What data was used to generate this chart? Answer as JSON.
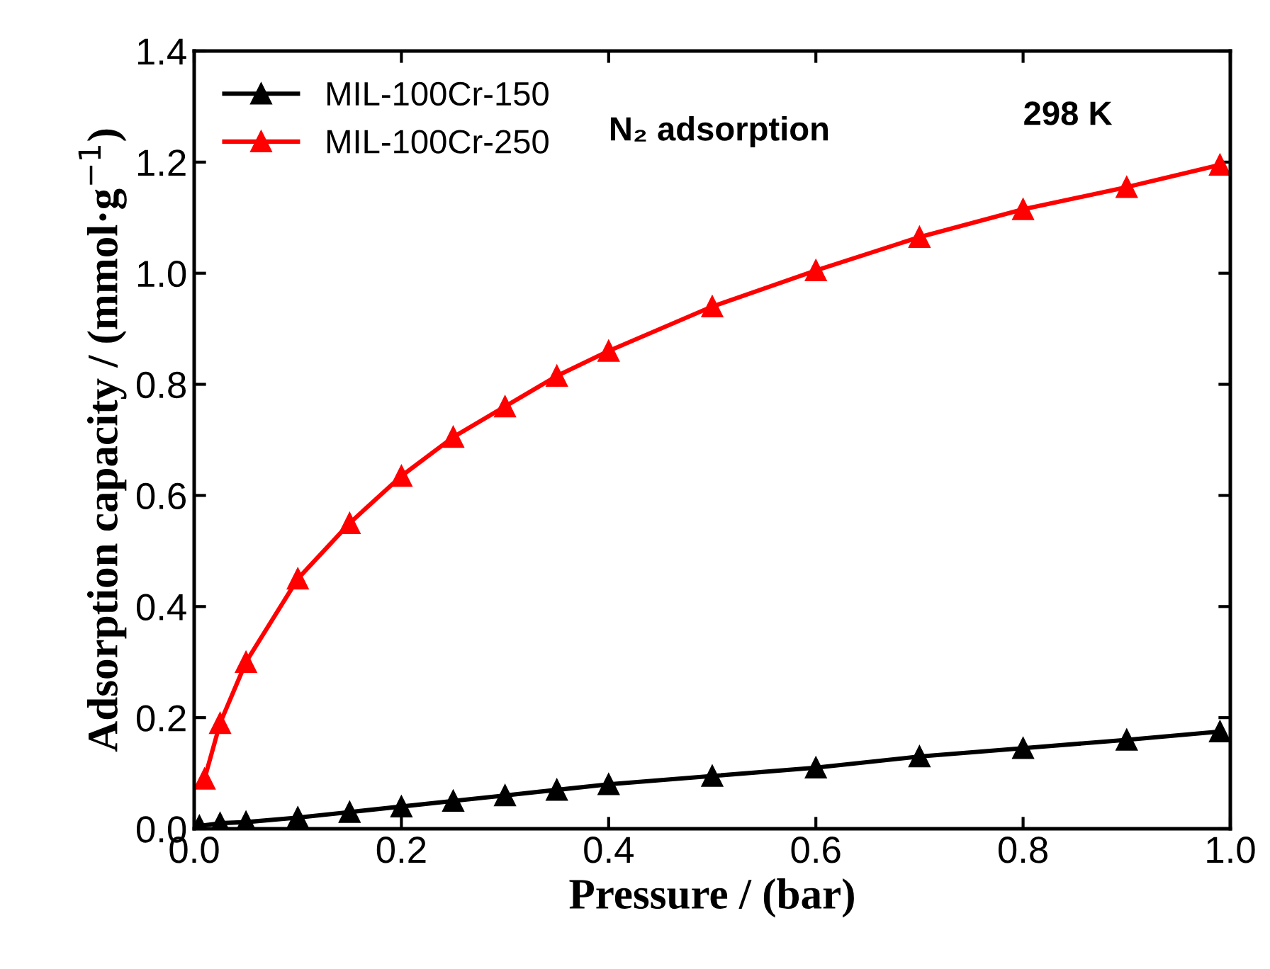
{
  "chart_data": {
    "type": "line",
    "xlabel": "Pressure / (bar)",
    "ylabel": "Adsorption capacity / (mmol·g$^{−1}$)",
    "annotations": [
      "N₂ adsorption",
      "298 K"
    ],
    "series": [
      {
        "name": "MIL-100Cr-150",
        "color": "#000000",
        "x": [
          0.005,
          0.025,
          0.05,
          0.1,
          0.15,
          0.2,
          0.25,
          0.3,
          0.35,
          0.4,
          0.5,
          0.6,
          0.7,
          0.8,
          0.9,
          0.99
        ],
        "values": [
          0.005,
          0.01,
          0.012,
          0.02,
          0.03,
          0.04,
          0.05,
          0.06,
          0.07,
          0.08,
          0.095,
          0.11,
          0.13,
          0.145,
          0.16,
          0.175
        ]
      },
      {
        "name": "MIL-100Cr-250",
        "color": "#ff0000",
        "x": [
          0.01,
          0.025,
          0.05,
          0.1,
          0.15,
          0.2,
          0.25,
          0.3,
          0.35,
          0.4,
          0.5,
          0.6,
          0.7,
          0.8,
          0.9,
          0.99
        ],
        "values": [
          0.09,
          0.19,
          0.3,
          0.45,
          0.55,
          0.635,
          0.705,
          0.76,
          0.815,
          0.86,
          0.94,
          1.005,
          1.065,
          1.115,
          1.155,
          1.195
        ]
      }
    ],
    "xlim": [
      0.0,
      1.0
    ],
    "xticks": [
      {
        "value": 0,
        "label": "0.0"
      },
      0.2,
      0.4,
      0.6,
      0.8,
      {
        "value": 1,
        "label": "1.0"
      }
    ],
    "ylim": [
      0.0,
      1.4
    ],
    "yticks": [
      {
        "value": 0,
        "label": "0.0"
      },
      0.2,
      0.4,
      0.6,
      0.8,
      {
        "value": 1,
        "label": "1.0"
      },
      1.2,
      1.4
    ],
    "marker": "triangle",
    "line_style": "solid",
    "legend": "top left",
    "grid": false
  }
}
